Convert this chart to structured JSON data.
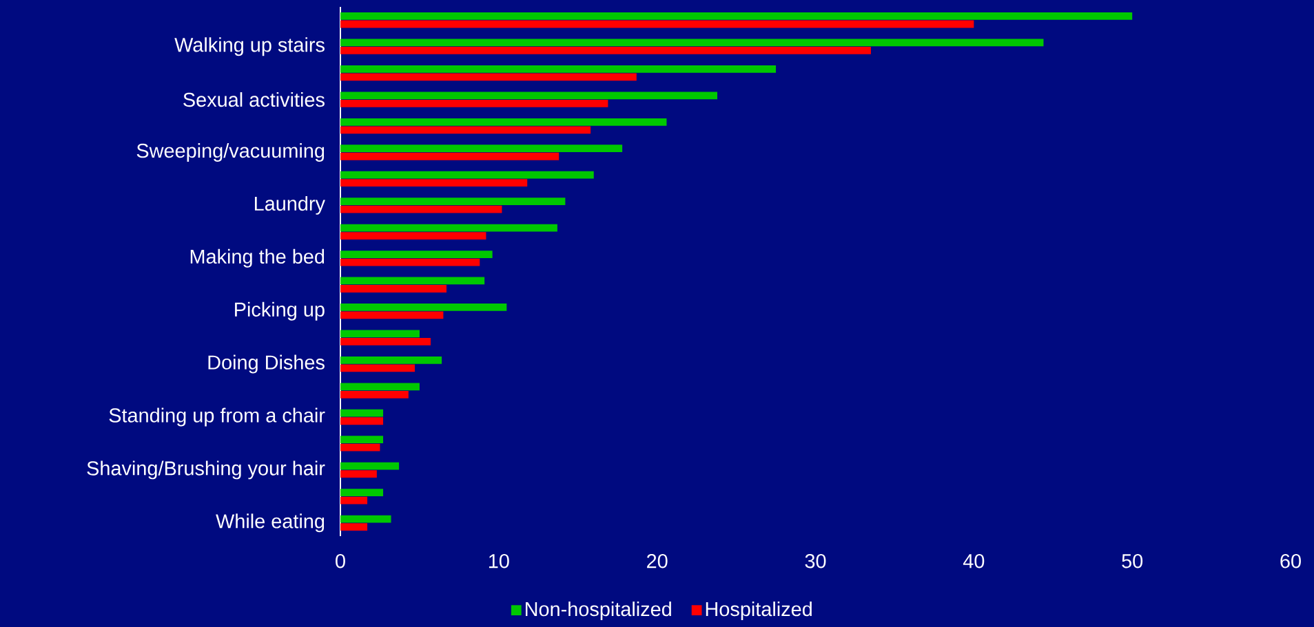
{
  "chart_data": {
    "type": "bar",
    "orientation": "horizontal",
    "categories": [
      null,
      "Walking up stairs",
      null,
      "Sexual activities",
      null,
      "Sweeping/vacuuming",
      null,
      "Laundry",
      null,
      "Making the bed",
      null,
      "Picking up",
      null,
      "Doing Dishes",
      null,
      "Standing up from a chair",
      null,
      "Shaving/Brushing your hair",
      null,
      "While eating"
    ],
    "series": [
      {
        "name": "Non-hospitalized",
        "color": "#00c800",
        "values": [
          50,
          44.4,
          27.5,
          23.8,
          20.6,
          17.8,
          16,
          14.2,
          13.7,
          9.6,
          9.1,
          10.5,
          5,
          6.4,
          5,
          2.7,
          2.7,
          3.7,
          2.7,
          3.2
        ]
      },
      {
        "name": "Hospitalized",
        "color": "#ff0000",
        "values": [
          40,
          33.5,
          18.7,
          16.9,
          15.8,
          13.8,
          11.8,
          10.2,
          9.2,
          8.8,
          6.7,
          6.5,
          5.7,
          4.7,
          4.3,
          2.7,
          2.5,
          2.3,
          1.7,
          1.7
        ]
      }
    ],
    "xlim": [
      0,
      60
    ],
    "xticks": [
      0,
      10,
      20,
      30,
      40,
      50,
      60
    ],
    "grid": false,
    "legend": "bottom"
  }
}
